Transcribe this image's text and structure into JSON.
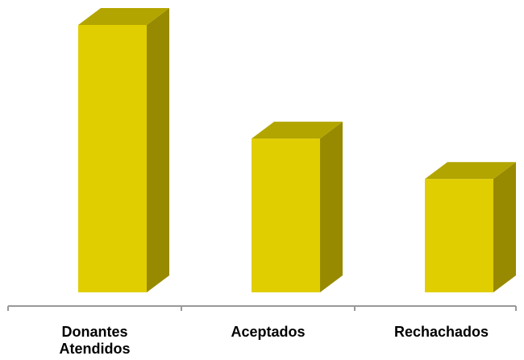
{
  "chart_data": {
    "type": "bar",
    "style": "3d-column",
    "categories": [
      [
        "Donantes",
        "Atendidos"
      ],
      [
        "Aceptados"
      ],
      [
        "Rechachados"
      ]
    ],
    "values": [
      100,
      57.5,
      42.4
    ],
    "title": "",
    "xlabel": "",
    "ylabel": "",
    "ylim": [
      0,
      100
    ],
    "grid": false,
    "legend": "none",
    "colors": {
      "front": "#e0ce00",
      "top": "#b3a500",
      "side": "#978a00",
      "axis": "#999999",
      "label": "#000000"
    }
  }
}
